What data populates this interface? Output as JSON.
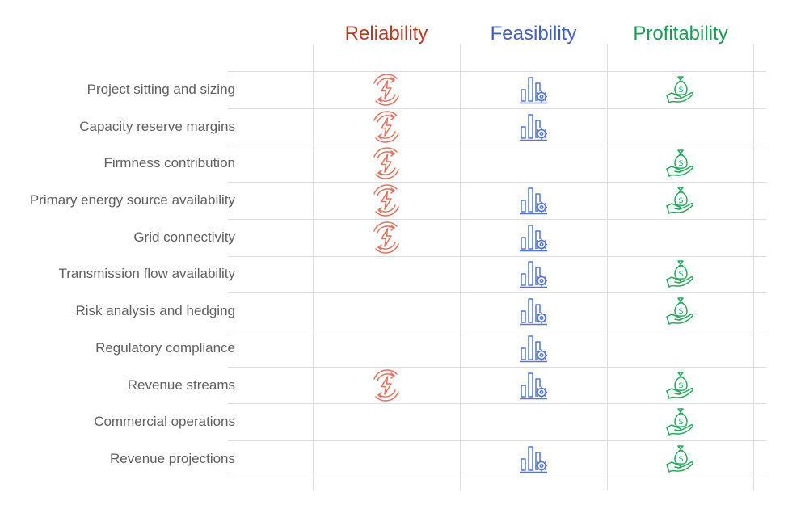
{
  "columns": [
    {
      "key": "reliability",
      "label": "Reliability",
      "color": "#b83a26",
      "icon": "reliability-icon"
    },
    {
      "key": "feasibility",
      "label": "Feasibility",
      "color": "#3f5fc4",
      "icon": "bar-chart-gear-icon"
    },
    {
      "key": "profitability",
      "label": "Profitability",
      "color": "#1e9a55",
      "icon": "money-hand-icon"
    }
  ],
  "icon_colors": {
    "reliability": "#e0735f",
    "feasibility": "#5275d6",
    "profitability": "#26a85d"
  },
  "rows": [
    {
      "label": "Project sitting and sizing",
      "reliability": true,
      "feasibility": true,
      "profitability": true
    },
    {
      "label": "Capacity reserve margins",
      "reliability": true,
      "feasibility": true,
      "profitability": false
    },
    {
      "label": "Firmness contribution",
      "reliability": true,
      "feasibility": false,
      "profitability": true
    },
    {
      "label": "Primary energy source availability",
      "reliability": true,
      "feasibility": true,
      "profitability": true
    },
    {
      "label": "Grid connectivity",
      "reliability": true,
      "feasibility": true,
      "profitability": false
    },
    {
      "label": "Transmission flow availability",
      "reliability": false,
      "feasibility": true,
      "profitability": true
    },
    {
      "label": "Risk analysis and hedging",
      "reliability": false,
      "feasibility": true,
      "profitability": true
    },
    {
      "label": "Regulatory compliance",
      "reliability": false,
      "feasibility": true,
      "profitability": false
    },
    {
      "label": "Revenue streams",
      "reliability": true,
      "feasibility": true,
      "profitability": true
    },
    {
      "label": "Commercial operations",
      "reliability": false,
      "feasibility": false,
      "profitability": true
    },
    {
      "label": "Revenue projections",
      "reliability": false,
      "feasibility": true,
      "profitability": true
    }
  ]
}
